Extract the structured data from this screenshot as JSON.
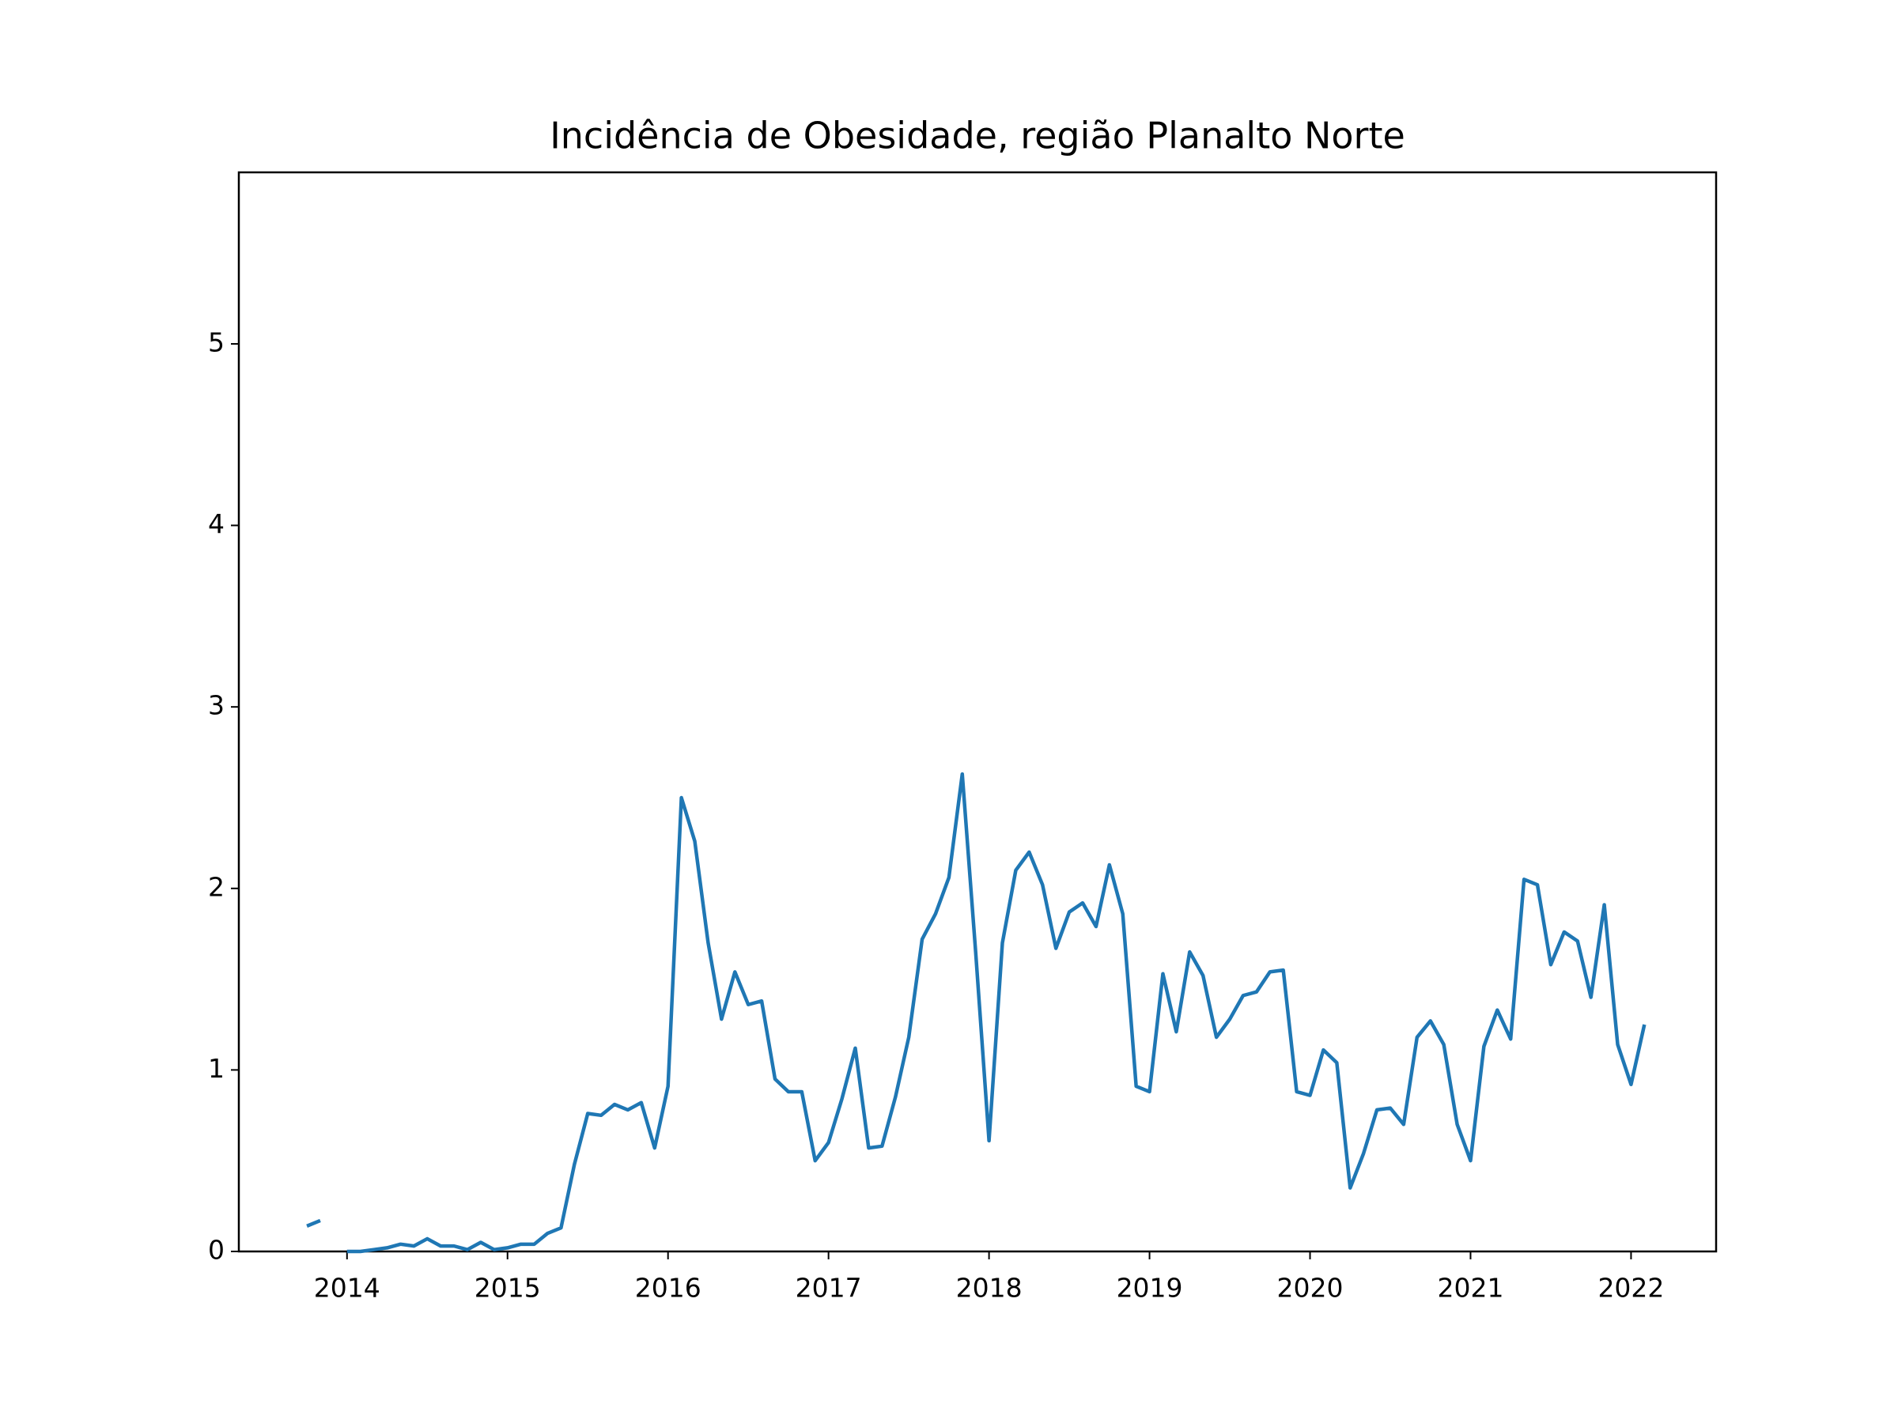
{
  "chart_data": {
    "type": "line",
    "title": "Incidência de Obesidade, região Planalto Norte",
    "x": [
      2013.75,
      2013.8333,
      2013.9167,
      2014,
      2014.0833,
      2014.1667,
      2014.25,
      2014.3333,
      2014.4167,
      2014.5,
      2014.5833,
      2014.6667,
      2014.75,
      2014.8333,
      2014.9167,
      2015,
      2015.0833,
      2015.1667,
      2015.25,
      2015.3333,
      2015.4167,
      2015.5,
      2015.5833,
      2015.6667,
      2015.75,
      2015.8333,
      2015.9167,
      2016,
      2016.0833,
      2016.1667,
      2016.25,
      2016.3333,
      2016.4167,
      2016.5,
      2016.5833,
      2016.6667,
      2016.75,
      2016.8333,
      2016.9167,
      2017,
      2017.0833,
      2017.1667,
      2017.25,
      2017.3333,
      2017.4167,
      2017.5,
      2017.5833,
      2017.6667,
      2017.75,
      2017.8333,
      2017.9167,
      2018,
      2018.0833,
      2018.1667,
      2018.25,
      2018.3333,
      2018.4167,
      2018.5,
      2018.5833,
      2018.6667,
      2018.75,
      2018.8333,
      2018.9167,
      2019,
      2019.0833,
      2019.1667,
      2019.25,
      2019.3333,
      2019.4167,
      2019.5,
      2019.5833,
      2019.6667,
      2019.75,
      2019.8333,
      2019.9167,
      2020,
      2020.0833,
      2020.1667,
      2020.25,
      2020.3333,
      2020.4167,
      2020.5,
      2020.5833,
      2020.6667,
      2020.75,
      2020.8333,
      2020.9167,
      2021,
      2021.0833,
      2021.1667,
      2021.25,
      2021.3333,
      2021.4167,
      2021.5,
      2021.5833,
      2021.6667,
      2021.75,
      2021.8333,
      2021.9167,
      2022,
      2022.0833
    ],
    "series": [
      {
        "color": "#1f77b4",
        "values": [
          0.14,
          0.17,
          null,
          0.0,
          0.0,
          0.01,
          0.02,
          0.04,
          0.03,
          0.07,
          0.03,
          0.03,
          0.01,
          0.05,
          0.01,
          0.02,
          0.04,
          0.04,
          0.1,
          0.13,
          0.48,
          0.76,
          0.75,
          0.81,
          0.78,
          0.82,
          0.57,
          0.91,
          2.5,
          2.26,
          1.7,
          1.28,
          1.54,
          1.36,
          1.38,
          0.95,
          0.88,
          0.88,
          0.5,
          0.6,
          0.84,
          1.12,
          0.57,
          0.58,
          0.85,
          1.18,
          1.72,
          1.86,
          2.06,
          2.63,
          1.65,
          0.61,
          1.7,
          2.1,
          2.2,
          2.02,
          1.67,
          1.87,
          1.92,
          1.79,
          2.13,
          1.86,
          0.91,
          0.88,
          1.53,
          1.21,
          1.65,
          1.52,
          1.18,
          1.28,
          1.41,
          1.43,
          1.54,
          1.55,
          0.88,
          0.86,
          1.11,
          1.04,
          0.35,
          0.54,
          0.78,
          0.79,
          0.7,
          1.18,
          1.27,
          1.14,
          0.7,
          0.5,
          1.13,
          1.33,
          1.17,
          2.05,
          2.02,
          1.58,
          1.76,
          1.71,
          1.4,
          1.91,
          1.14,
          0.92,
          1.25
        ]
      }
    ],
    "xlim": [
      2013.326,
      2022.53
    ],
    "xticks": [
      2014,
      2015,
      2016,
      2017,
      2018,
      2019,
      2020,
      2021,
      2022
    ],
    "ylim": [
      0,
      5.945
    ],
    "yticks": [
      0,
      1,
      2,
      3,
      4,
      5
    ]
  }
}
